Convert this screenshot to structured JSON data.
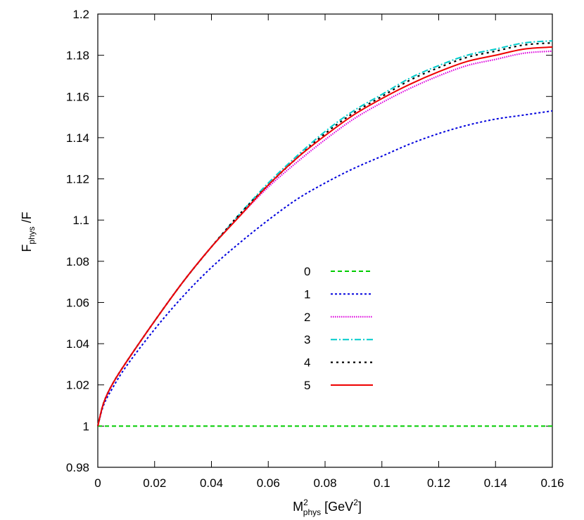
{
  "chart_data": {
    "type": "line",
    "xlabel": {
      "base": "M",
      "sup": "2",
      "sub": "phys",
      "unit_open": " [GeV",
      "unit_sup": "2",
      "unit_close": "]"
    },
    "ylabel": {
      "base": "F",
      "sub": "phys",
      "rest": " /F"
    },
    "xlim": [
      0,
      0.16
    ],
    "ylim": [
      0.98,
      1.2
    ],
    "xticks": [
      0,
      0.02,
      0.04,
      0.06,
      0.08,
      0.1,
      0.12,
      0.14,
      0.16
    ],
    "xtick_labels": [
      "0",
      "0.02",
      "0.04",
      "0.06",
      "0.08",
      "0.1",
      "0.12",
      "0.14",
      "0.16"
    ],
    "yticks": [
      0.98,
      1.0,
      1.02,
      1.04,
      1.06,
      1.08,
      1.1,
      1.12,
      1.14,
      1.16,
      1.18,
      1.2
    ],
    "ytick_labels": [
      "0.98",
      "1",
      "1.02",
      "1.04",
      "1.06",
      "1.08",
      "1.1",
      "1.12",
      "1.14",
      "1.16",
      "1.18",
      "1.2"
    ],
    "grid": false,
    "legend_position": "center",
    "series": [
      {
        "name": "0",
        "color": "#00cc00",
        "dash": "6,4",
        "width": 2,
        "x": [
          0,
          0.16
        ],
        "y": [
          1.0,
          1.0
        ]
      },
      {
        "name": "1",
        "color": "#0000dd",
        "dash": "3,3",
        "width": 2,
        "x": [
          0,
          0.002,
          0.005,
          0.01,
          0.02,
          0.03,
          0.04,
          0.05,
          0.06,
          0.07,
          0.08,
          0.09,
          0.1,
          0.11,
          0.12,
          0.13,
          0.14,
          0.15,
          0.16
        ],
        "y": [
          1.0,
          1.01,
          1.018,
          1.029,
          1.047,
          1.063,
          1.077,
          1.089,
          1.1,
          1.11,
          1.118,
          1.125,
          1.131,
          1.137,
          1.142,
          1.146,
          1.149,
          1.151,
          1.153
        ]
      },
      {
        "name": "2",
        "color": "#dd00dd",
        "dash": "1.5,1.5",
        "width": 2.2,
        "x": [
          0,
          0.002,
          0.005,
          0.01,
          0.02,
          0.03,
          0.04,
          0.05,
          0.06,
          0.07,
          0.08,
          0.09,
          0.1,
          0.11,
          0.12,
          0.13,
          0.14,
          0.15,
          0.16
        ],
        "y": [
          1.0,
          1.011,
          1.02,
          1.031,
          1.051,
          1.07,
          1.087,
          1.102,
          1.116,
          1.128,
          1.139,
          1.149,
          1.157,
          1.164,
          1.17,
          1.175,
          1.178,
          1.181,
          1.182
        ]
      },
      {
        "name": "3",
        "color": "#00cccc",
        "dash": "9,3,2,3",
        "width": 2,
        "x": [
          0,
          0.002,
          0.005,
          0.01,
          0.02,
          0.03,
          0.04,
          0.05,
          0.06,
          0.07,
          0.08,
          0.09,
          0.1,
          0.11,
          0.12,
          0.13,
          0.14,
          0.15,
          0.16
        ],
        "y": [
          1.0,
          1.011,
          1.02,
          1.031,
          1.051,
          1.07,
          1.087,
          1.103,
          1.118,
          1.131,
          1.143,
          1.153,
          1.161,
          1.169,
          1.175,
          1.18,
          1.183,
          1.186,
          1.187
        ]
      },
      {
        "name": "4",
        "color": "#000000",
        "dash": "3,5",
        "width": 2.2,
        "x": [
          0,
          0.002,
          0.005,
          0.01,
          0.02,
          0.03,
          0.04,
          0.05,
          0.06,
          0.07,
          0.08,
          0.09,
          0.1,
          0.11,
          0.12,
          0.13,
          0.14,
          0.15,
          0.16
        ],
        "y": [
          1.0,
          1.011,
          1.02,
          1.031,
          1.051,
          1.07,
          1.087,
          1.103,
          1.117,
          1.13,
          1.142,
          1.152,
          1.16,
          1.168,
          1.174,
          1.179,
          1.182,
          1.185,
          1.186
        ]
      },
      {
        "name": "5",
        "color": "#ee0000",
        "dash": "",
        "width": 2,
        "x": [
          0,
          0.002,
          0.005,
          0.01,
          0.02,
          0.03,
          0.04,
          0.05,
          0.06,
          0.07,
          0.08,
          0.09,
          0.1,
          0.11,
          0.12,
          0.13,
          0.14,
          0.15,
          0.16
        ],
        "y": [
          1.0,
          1.011,
          1.02,
          1.031,
          1.051,
          1.07,
          1.087,
          1.102,
          1.117,
          1.13,
          1.141,
          1.151,
          1.159,
          1.166,
          1.172,
          1.177,
          1.18,
          1.183,
          1.184
        ]
      }
    ]
  }
}
